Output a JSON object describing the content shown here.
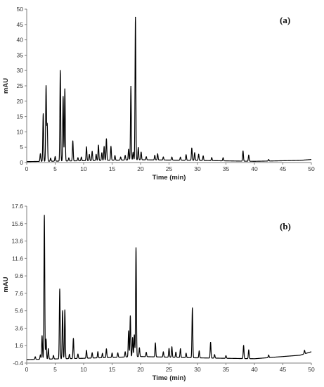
{
  "chart_data": [
    {
      "type": "line",
      "panel_label": "(a)",
      "xlabel": "Time (min)",
      "ylabel": "mAU",
      "xlim": [
        0,
        50
      ],
      "ylim": [
        0,
        50
      ],
      "xticks": [
        0,
        5,
        10,
        15,
        20,
        25,
        30,
        35,
        40,
        45,
        50
      ],
      "yticks": [
        0,
        5,
        10,
        15,
        20,
        25,
        30,
        35,
        40,
        45,
        50
      ],
      "grid": false,
      "baseline": [
        [
          0,
          0.3
        ],
        [
          10,
          0.6
        ],
        [
          20,
          0.9
        ],
        [
          30,
          0.7
        ],
        [
          40,
          0.4
        ],
        [
          48,
          0.7
        ],
        [
          50,
          1.0
        ]
      ],
      "peaks": [
        {
          "t": 2.4,
          "h": 2.5
        },
        {
          "t": 2.9,
          "h": 15.5
        },
        {
          "t": 3.4,
          "h": 24.5
        },
        {
          "t": 3.6,
          "h": 12.0
        },
        {
          "t": 4.2,
          "h": 1.0
        },
        {
          "t": 5.0,
          "h": 1.5
        },
        {
          "t": 5.9,
          "h": 29.5
        },
        {
          "t": 6.4,
          "h": 21.0
        },
        {
          "t": 6.7,
          "h": 23.5
        },
        {
          "t": 7.4,
          "h": 1.0
        },
        {
          "t": 8.1,
          "h": 6.5
        },
        {
          "t": 9.0,
          "h": 1.0
        },
        {
          "t": 9.6,
          "h": 1.2
        },
        {
          "t": 10.5,
          "h": 4.5
        },
        {
          "t": 11.0,
          "h": 2.0
        },
        {
          "t": 11.5,
          "h": 3.0
        },
        {
          "t": 12.2,
          "h": 2.0
        },
        {
          "t": 12.6,
          "h": 5.0
        },
        {
          "t": 13.2,
          "h": 2.5
        },
        {
          "t": 13.6,
          "h": 4.5
        },
        {
          "t": 14.0,
          "h": 7.0
        },
        {
          "t": 14.8,
          "h": 4.5
        },
        {
          "t": 15.5,
          "h": 1.5
        },
        {
          "t": 16.5,
          "h": 1.0
        },
        {
          "t": 17.3,
          "h": 1.5
        },
        {
          "t": 17.9,
          "h": 3.5
        },
        {
          "t": 18.3,
          "h": 24.0
        },
        {
          "t": 18.7,
          "h": 2.5
        },
        {
          "t": 19.1,
          "h": 46.5
        },
        {
          "t": 19.6,
          "h": 4.0
        },
        {
          "t": 20.1,
          "h": 2.5
        },
        {
          "t": 21.0,
          "h": 1.0
        },
        {
          "t": 22.5,
          "h": 1.5
        },
        {
          "t": 23.0,
          "h": 2.0
        },
        {
          "t": 24.0,
          "h": 1.0
        },
        {
          "t": 25.5,
          "h": 1.0
        },
        {
          "t": 27.0,
          "h": 1.0
        },
        {
          "t": 28.0,
          "h": 1.8
        },
        {
          "t": 29.0,
          "h": 4.0
        },
        {
          "t": 29.5,
          "h": 2.5
        },
        {
          "t": 30.2,
          "h": 2.0
        },
        {
          "t": 31.0,
          "h": 1.5
        },
        {
          "t": 32.5,
          "h": 1.0
        },
        {
          "t": 34.5,
          "h": 1.0
        },
        {
          "t": 38.0,
          "h": 3.3
        },
        {
          "t": 39.0,
          "h": 2.0
        },
        {
          "t": 42.5,
          "h": 0.5
        }
      ]
    },
    {
      "type": "line",
      "panel_label": "(b)",
      "xlabel": "Time (min)",
      "ylabel": "mAU",
      "xlim": [
        0,
        50
      ],
      "ylim": [
        -0.4,
        17.6
      ],
      "xticks": [
        0,
        5,
        10,
        15,
        20,
        25,
        30,
        35,
        40,
        45,
        50
      ],
      "yticks": [
        -0.4,
        1.6,
        3.6,
        5.6,
        7.6,
        9.6,
        11.6,
        13.6,
        15.6,
        17.6
      ],
      "grid": false,
      "baseline": [
        [
          0,
          0.0
        ],
        [
          10,
          0.15
        ],
        [
          20,
          0.35
        ],
        [
          30,
          0.2
        ],
        [
          40,
          0.1
        ],
        [
          48,
          0.5
        ],
        [
          50,
          0.9
        ]
      ],
      "peaks": [
        {
          "t": 1.5,
          "h": 0.3
        },
        {
          "t": 2.4,
          "h": 0.5
        },
        {
          "t": 2.7,
          "h": 2.7
        },
        {
          "t": 3.1,
          "h": 16.5
        },
        {
          "t": 3.4,
          "h": 2.3
        },
        {
          "t": 3.8,
          "h": 1.2
        },
        {
          "t": 4.7,
          "h": 0.4
        },
        {
          "t": 5.8,
          "h": 8.0
        },
        {
          "t": 6.3,
          "h": 5.5
        },
        {
          "t": 6.7,
          "h": 5.6
        },
        {
          "t": 7.5,
          "h": 0.5
        },
        {
          "t": 8.2,
          "h": 2.3
        },
        {
          "t": 9.0,
          "h": 0.5
        },
        {
          "t": 10.5,
          "h": 0.9
        },
        {
          "t": 11.5,
          "h": 0.6
        },
        {
          "t": 12.5,
          "h": 0.7
        },
        {
          "t": 13.3,
          "h": 0.5
        },
        {
          "t": 14.0,
          "h": 1.0
        },
        {
          "t": 15.0,
          "h": 0.5
        },
        {
          "t": 16.0,
          "h": 0.5
        },
        {
          "t": 17.3,
          "h": 0.6
        },
        {
          "t": 17.9,
          "h": 3.0
        },
        {
          "t": 18.2,
          "h": 4.7
        },
        {
          "t": 18.6,
          "h": 2.2
        },
        {
          "t": 18.9,
          "h": 2.5
        },
        {
          "t": 19.2,
          "h": 12.5
        },
        {
          "t": 19.8,
          "h": 1.0
        },
        {
          "t": 21.0,
          "h": 0.5
        },
        {
          "t": 22.6,
          "h": 1.6
        },
        {
          "t": 24.0,
          "h": 0.6
        },
        {
          "t": 25.0,
          "h": 1.0
        },
        {
          "t": 25.5,
          "h": 1.2
        },
        {
          "t": 26.2,
          "h": 0.6
        },
        {
          "t": 27.0,
          "h": 1.0
        },
        {
          "t": 28.0,
          "h": 0.5
        },
        {
          "t": 29.1,
          "h": 5.7
        },
        {
          "t": 30.3,
          "h": 0.8
        },
        {
          "t": 32.3,
          "h": 1.8
        },
        {
          "t": 33.0,
          "h": 0.4
        },
        {
          "t": 35.0,
          "h": 0.3
        },
        {
          "t": 38.1,
          "h": 1.5
        },
        {
          "t": 39.0,
          "h": 1.0
        },
        {
          "t": 42.5,
          "h": 0.3
        },
        {
          "t": 48.8,
          "h": 0.4
        }
      ]
    }
  ]
}
